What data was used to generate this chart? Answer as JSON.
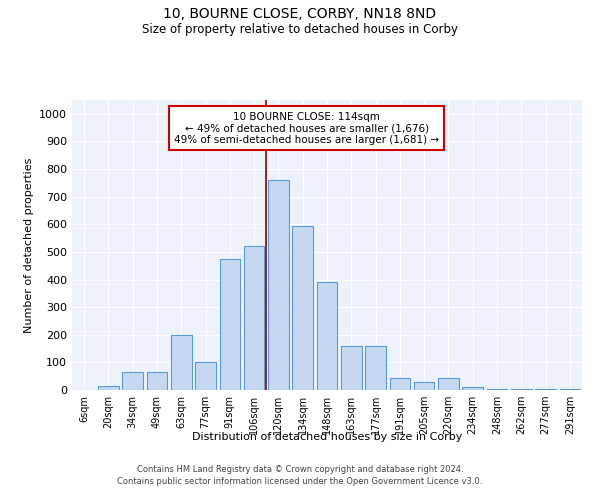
{
  "title": "10, BOURNE CLOSE, CORBY, NN18 8ND",
  "subtitle": "Size of property relative to detached houses in Corby",
  "xlabel": "Distribution of detached houses by size in Corby",
  "ylabel": "Number of detached properties",
  "categories": [
    "6sqm",
    "20sqm",
    "34sqm",
    "49sqm",
    "63sqm",
    "77sqm",
    "91sqm",
    "106sqm",
    "120sqm",
    "134sqm",
    "148sqm",
    "163sqm",
    "177sqm",
    "191sqm",
    "205sqm",
    "220sqm",
    "234sqm",
    "248sqm",
    "262sqm",
    "277sqm",
    "291sqm"
  ],
  "values": [
    0,
    13,
    65,
    65,
    200,
    100,
    475,
    520,
    760,
    595,
    390,
    160,
    160,
    42,
    28,
    45,
    10,
    5,
    5,
    5,
    5
  ],
  "bar_color": "#c5d8f0",
  "bar_edge_color": "#5b9bd5",
  "vline_pos": 7.5,
  "vline_color": "#8b0000",
  "annotation_line1": "10 BOURNE CLOSE: 114sqm",
  "annotation_line2": "← 49% of detached houses are smaller (1,676)",
  "annotation_line3": "49% of semi-detached houses are larger (1,681) →",
  "annotation_box_color": "#ffffff",
  "annotation_box_edge_color": "#cc0000",
  "ylim": [
    0,
    1050
  ],
  "yticks": [
    0,
    100,
    200,
    300,
    400,
    500,
    600,
    700,
    800,
    900,
    1000
  ],
  "bg_color": "#eef2fa",
  "grid_color": "#ffffff",
  "footer_line1": "Contains HM Land Registry data © Crown copyright and database right 2024.",
  "footer_line2": "Contains public sector information licensed under the Open Government Licence v3.0.",
  "title_fontsize": 10,
  "subtitle_fontsize": 8.5,
  "tick_fontsize": 7,
  "ylabel_fontsize": 8,
  "xlabel_fontsize": 8,
  "footer_fontsize": 6
}
